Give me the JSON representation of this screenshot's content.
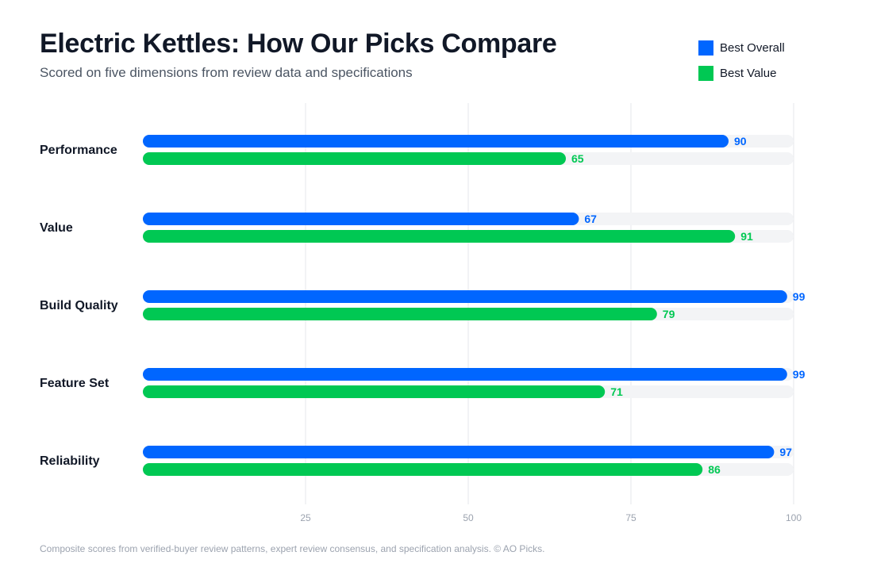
{
  "header": {
    "title": "Electric Kettles: How Our Picks Compare",
    "subtitle": "Scored on five dimensions from review data and specifications"
  },
  "footer": {
    "note": "Composite scores from verified-buyer review patterns, expert review consensus, and specification analysis. © AO Picks."
  },
  "colors": {
    "best_overall": "#0066ff",
    "best_value": "#00c853",
    "track": "#f3f4f6",
    "grid": "#e5e7eb"
  },
  "chart_data": {
    "type": "bar",
    "orientation": "horizontal",
    "title": "Electric Kettles: How Our Picks Compare",
    "subtitle": "Scored on five dimensions from review data and specifications",
    "categories": [
      "Performance",
      "Value",
      "Build Quality",
      "Feature Set",
      "Reliability"
    ],
    "series": [
      {
        "name": "Best Overall",
        "color": "#0066ff",
        "values": [
          90,
          67,
          99,
          99,
          97
        ]
      },
      {
        "name": "Best Value",
        "color": "#00c853",
        "values": [
          65,
          91,
          79,
          71,
          86
        ]
      }
    ],
    "xlim": [
      0,
      100
    ],
    "xticks": [
      25,
      50,
      75,
      100
    ],
    "grid": true,
    "legend": "top-right",
    "data_labels": true
  }
}
